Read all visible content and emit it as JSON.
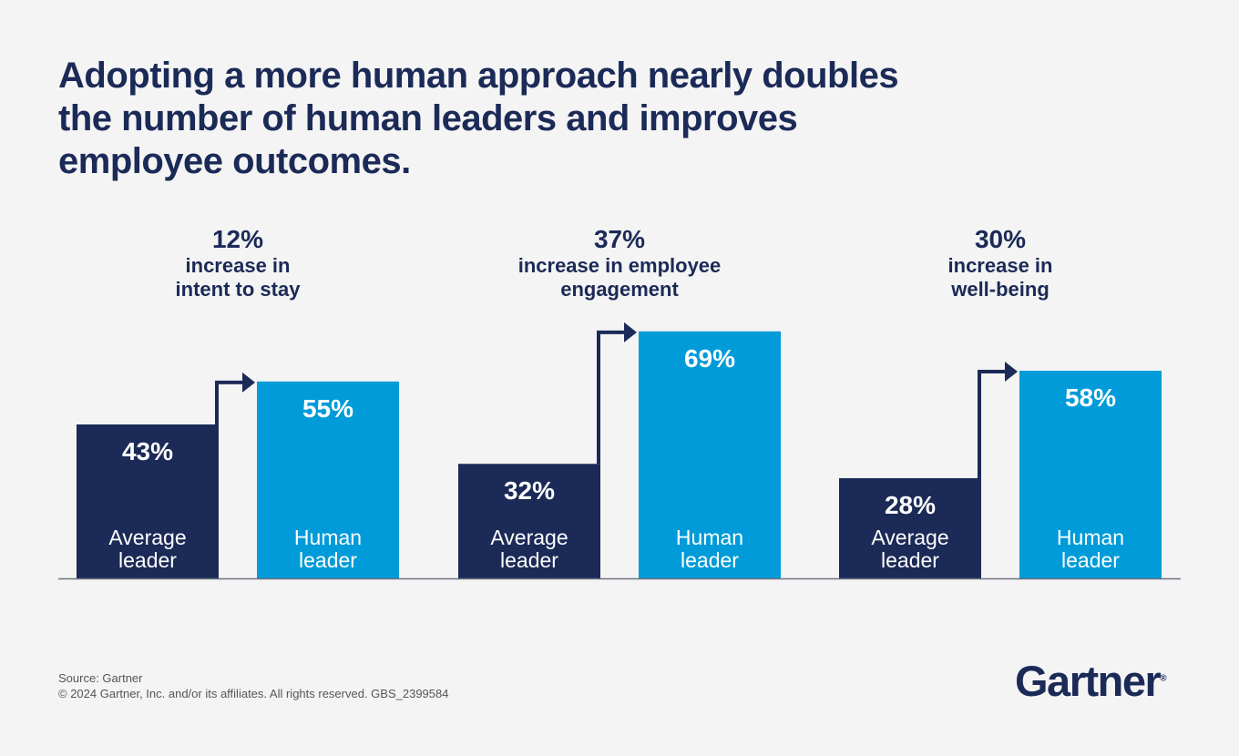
{
  "title": "Adopting a more human approach nearly doubles the number of human leaders and improves employee outcomes.",
  "chart_data": {
    "type": "bar",
    "title": "Adopting a more human approach nearly doubles the number of human leaders and improves employee outcomes.",
    "ylim": [
      0,
      100
    ],
    "grid": false,
    "colors": {
      "Average leader": "#1b2a57",
      "Human leader": "#009bd8"
    },
    "groups": [
      {
        "increase": "12%",
        "caption": [
          "increase in",
          "intent to stay"
        ],
        "bars": [
          {
            "label": [
              "Average",
              "leader"
            ],
            "value": 43,
            "display": "43%"
          },
          {
            "label": [
              "Human",
              "leader"
            ],
            "value": 55,
            "display": "55%"
          }
        ]
      },
      {
        "increase": "37%",
        "caption": [
          "increase in employee",
          "engagement"
        ],
        "bars": [
          {
            "label": [
              "Average",
              "leader"
            ],
            "value": 32,
            "display": "32%"
          },
          {
            "label": [
              "Human",
              "leader"
            ],
            "value": 69,
            "display": "69%"
          }
        ]
      },
      {
        "increase": "30%",
        "caption": [
          "increase in",
          "well-being"
        ],
        "bars": [
          {
            "label": [
              "Average",
              "leader"
            ],
            "value": 28,
            "display": "28%"
          },
          {
            "label": [
              "Human",
              "leader"
            ],
            "value": 58,
            "display": "58%"
          }
        ]
      }
    ]
  },
  "footer": {
    "source": "Source: Gartner",
    "copyright": "© 2024 Gartner, Inc. and/or its affiliates. All rights reserved. GBS_2399584"
  },
  "logo": {
    "text": "Gartner",
    "mark": "®"
  }
}
